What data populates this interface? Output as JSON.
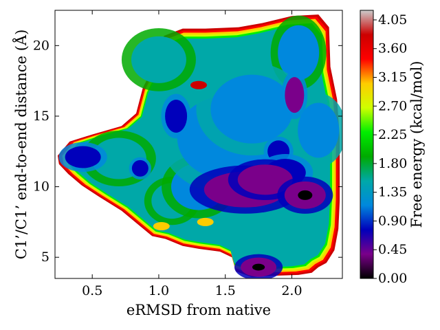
{
  "chart_data": {
    "type": "heatmap",
    "xlabel": "eRMSD from native",
    "ylabel": "C1’/C1’ end-to-end distance (Å)",
    "colorbar_label": "Free energy (kcal/mol)",
    "xlim": [
      0.22,
      2.38
    ],
    "ylim": [
      3.5,
      22.5
    ],
    "x_ticks": [
      0.5,
      1.0,
      1.5,
      2.0
    ],
    "x_tick_labels": [
      "0.5",
      "1.0",
      "1.5",
      "2.0"
    ],
    "y_ticks": [
      5,
      10,
      15,
      20
    ],
    "y_tick_labels": [
      "5",
      "10",
      "15",
      "20"
    ],
    "colorbar_range": [
      0.0,
      4.2
    ],
    "colorbar_ticks": [
      0.0,
      0.45,
      0.9,
      1.35,
      1.8,
      2.25,
      2.7,
      3.15,
      3.6,
      4.05
    ],
    "colorbar_tick_labels": [
      "0.00",
      "0.45",
      "0.90",
      "1.35",
      "1.80",
      "2.25",
      "2.70",
      "3.15",
      "3.60",
      "4.05"
    ],
    "colormap": "nipy_spectral",
    "colormap_stops": [
      "#000000",
      "#7a008a",
      "#0000bb",
      "#0088dd",
      "#00a8a8",
      "#00aa00",
      "#00ee00",
      "#cfff00",
      "#ffcc00",
      "#ff0000",
      "#cc0000",
      "#cccccc"
    ],
    "basins": [
      {
        "x": 1.75,
        "y": 4.3,
        "energy": 0.3
      },
      {
        "x": 2.1,
        "y": 9.4,
        "energy": 0.2
      },
      {
        "x": 1.65,
        "y": 9.8,
        "energy": 0.5
      },
      {
        "x": 1.8,
        "y": 10.5,
        "energy": 0.4
      },
      {
        "x": 1.95,
        "y": 11.0,
        "energy": 0.65
      },
      {
        "x": 2.02,
        "y": 16.5,
        "energy": 0.55
      },
      {
        "x": 1.9,
        "y": 12.5,
        "energy": 0.7
      },
      {
        "x": 1.13,
        "y": 15.0,
        "energy": 0.7
      },
      {
        "x": 0.43,
        "y": 12.1,
        "energy": 0.6
      },
      {
        "x": 0.86,
        "y": 11.3,
        "energy": 0.8
      },
      {
        "x": 1.5,
        "y": 13.5,
        "energy": 1.2
      },
      {
        "x": 1.7,
        "y": 15.5,
        "energy": 1.1
      },
      {
        "x": 2.05,
        "y": 19.5,
        "energy": 1.3
      },
      {
        "x": 1.3,
        "y": 10.0,
        "energy": 1.3
      },
      {
        "x": 2.2,
        "y": 14.0,
        "energy": 1.1
      },
      {
        "x": 1.0,
        "y": 19.0,
        "energy": 1.6
      },
      {
        "x": 0.7,
        "y": 12.0,
        "energy": 1.5
      },
      {
        "x": 1.1,
        "y": 9.0,
        "energy": 1.5
      }
    ],
    "high_energy_spots": [
      {
        "x": 1.3,
        "y": 17.2,
        "energy": 3.8
      },
      {
        "x": 1.02,
        "y": 7.2,
        "energy": 3.2
      },
      {
        "x": 1.35,
        "y": 7.5,
        "energy": 2.9
      }
    ]
  }
}
